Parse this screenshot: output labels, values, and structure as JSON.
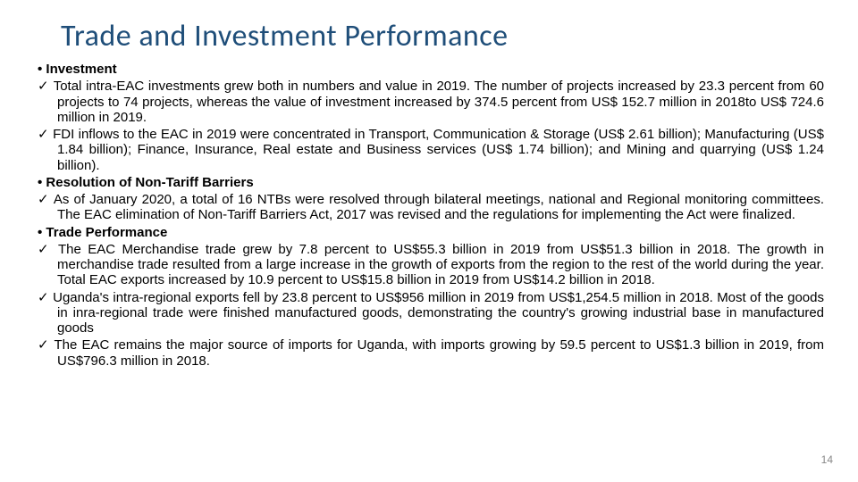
{
  "title": "Trade and Investment Performance",
  "sections": {
    "investment": {
      "heading": "Investment",
      "items": [
        "Total intra-EAC investments grew both in numbers and value in 2019. The number of projects increased by 23.3 percent from 60 projects to 74 projects, whereas the value of investment increased by 374.5 percent from US$ 152.7 million in 2018to US$ 724.6 million in 2019.",
        "FDI inflows to the EAC in 2019 were concentrated in Transport, Communication & Storage (US$ 2.61 billion); Manufacturing (US$ 1.84 billion); Finance, Insurance, Real estate and Business services (US$ 1.74 billion); and Mining and quarrying (US$ 1.24 billion)."
      ]
    },
    "ntb": {
      "heading": "Resolution of Non-Tariff Barriers",
      "items": [
        "As of January 2020, a total of 16 NTBs were resolved through bilateral meetings, national and Regional monitoring committees. The EAC elimination of Non-Tariff Barriers Act, 2017 was revised and the regulations for implementing the Act were finalized."
      ]
    },
    "trade": {
      "heading": "Trade Performance",
      "items": [
        "The EAC Merchandise trade grew by 7.8 percent to US$55.3 billion in 2019 from US$51.3 billion in 2018. The growth in merchandise trade resulted from a large increase in the growth of exports from the region to the rest of the world during the year. Total EAC exports increased by 10.9 percent to US$15.8 billion in 2019 from US$14.2 billion in 2018.",
        "Uganda's intra-regional exports fell by 23.8 percent to US$956 million in 2019 from US$1,254.5 million in 2018. Most of the goods in inra-regional trade were finished manufactured goods, demonstrating the country's growing industrial base in manufactured goods",
        "The EAC remains the major source of imports for Uganda, with imports growing by 59.5 percent to US$1.3 billion in 2019, from US$796.3 million in 2018."
      ]
    }
  },
  "page_number": "14",
  "colors": {
    "title": "#1f4e79",
    "text": "#000000",
    "page_num": "#888888",
    "background": "#ffffff"
  }
}
